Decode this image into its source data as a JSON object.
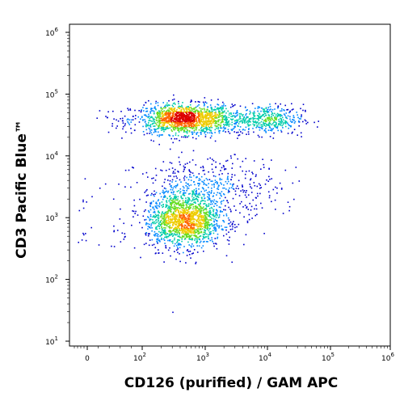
{
  "chart_data": {
    "type": "scatter",
    "style": "density-dot-plot",
    "xlabel": "CD126 (purified) / GAM APC",
    "ylabel": "CD3 Pacific Blue™",
    "x_scale": "biexponential",
    "y_scale": "log",
    "xlim": [
      -100,
      1000000
    ],
    "ylim": [
      10,
      1000000
    ],
    "x_ticks": [
      {
        "value": 0,
        "base": "0",
        "exp": ""
      },
      {
        "value": 100,
        "base": "10",
        "exp": "2"
      },
      {
        "value": 1000,
        "base": "10",
        "exp": "3"
      },
      {
        "value": 10000,
        "base": "10",
        "exp": "4"
      },
      {
        "value": 100000,
        "base": "10",
        "exp": "5"
      },
      {
        "value": 1000000,
        "base": "10",
        "exp": "6"
      }
    ],
    "y_ticks": [
      {
        "value": 10,
        "base": "10",
        "exp": "1"
      },
      {
        "value": 100,
        "base": "10",
        "exp": "2"
      },
      {
        "value": 1000,
        "base": "10",
        "exp": "3"
      },
      {
        "value": 10000,
        "base": "10",
        "exp": "4"
      },
      {
        "value": 100000,
        "base": "10",
        "exp": "5"
      },
      {
        "value": 1000000,
        "base": "10",
        "exp": "6"
      }
    ],
    "populations": [
      {
        "x_center": 450,
        "y_center": 40000,
        "x_spread_decades": 0.38,
        "y_spread_decades": 0.12,
        "events": 1400
      },
      {
        "x_center": 10000,
        "y_center": 40000,
        "x_spread_decades": 0.28,
        "y_spread_decades": 0.12,
        "events": 380
      },
      {
        "x_center": 2500,
        "y_center": 40000,
        "x_spread_decades": 0.4,
        "y_spread_decades": 0.13,
        "events": 160
      },
      {
        "x_center": 450,
        "y_center": 900,
        "x_spread_decades": 0.3,
        "y_spread_decades": 0.22,
        "events": 1500
      },
      {
        "x_center": 1200,
        "y_center": 3000,
        "x_spread_decades": 0.55,
        "y_spread_decades": 0.25,
        "events": 500
      }
    ],
    "density_colors": [
      "#0000cc",
      "#0088ff",
      "#00ccaa",
      "#66dd22",
      "#eecc00",
      "#ff6600",
      "#dd0000"
    ],
    "grid": false
  }
}
